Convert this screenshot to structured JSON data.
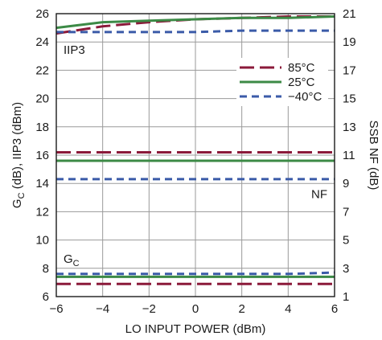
{
  "chart_data": {
    "type": "line",
    "x_axis": {
      "label": "LO INPUT POWER (dBm)",
      "lim": [
        -6,
        6
      ],
      "ticks": [
        -6,
        -4,
        -2,
        0,
        2,
        4,
        6
      ],
      "tick_labels": [
        "−6",
        "−4",
        "−2",
        "0",
        "2",
        "4",
        "6"
      ]
    },
    "y_axis_left": {
      "label": "G",
      "label_subscript": "C",
      "label_rest": " (dB), IIP3 (dBm)",
      "lim": [
        6,
        26
      ],
      "ticks": [
        6,
        8,
        10,
        12,
        14,
        16,
        18,
        20,
        22,
        24,
        26
      ],
      "tick_labels": [
        "6",
        "8",
        "10",
        "12",
        "14",
        "16",
        "18",
        "20",
        "22",
        "24",
        "26"
      ]
    },
    "y_axis_right": {
      "label": "SSB NF (dB)",
      "lim": [
        1,
        21
      ],
      "ticks": [
        1,
        3,
        5,
        7,
        9,
        11,
        13,
        15,
        17,
        19,
        21
      ],
      "tick_labels": [
        "1",
        "3",
        "5",
        "7",
        "9",
        "11",
        "13",
        "15",
        "17",
        "19",
        "21"
      ]
    },
    "grid": true,
    "legend": {
      "placement": "right, middle-upper",
      "entries": [
        {
          "name": "85°C",
          "color": "#8b1a3a",
          "dash": "dashed"
        },
        {
          "name": "25°C",
          "color": "#3c8a46",
          "dash": "solid"
        },
        {
          "name": "−40°C",
          "color": "#3b5ba8",
          "dash": "short-dashed"
        }
      ]
    },
    "annotations": [
      {
        "text": "IIP3",
        "near_group": "IIP3"
      },
      {
        "text": "NF",
        "near_group": "NF"
      },
      {
        "text": "G",
        "subscript": "C",
        "near_group": "GC"
      }
    ],
    "series": [
      {
        "group": "IIP3",
        "temp": "85°C",
        "axis": "left",
        "x": [
          -6,
          -4,
          -2,
          0,
          2,
          4,
          6
        ],
        "y": [
          24.6,
          25.1,
          25.4,
          25.6,
          25.7,
          25.8,
          25.8
        ]
      },
      {
        "group": "IIP3",
        "temp": "25°C",
        "axis": "left",
        "x": [
          -6,
          -4,
          -2,
          0,
          2,
          4,
          6
        ],
        "y": [
          25.0,
          25.4,
          25.5,
          25.6,
          25.7,
          25.7,
          25.8
        ]
      },
      {
        "group": "IIP3",
        "temp": "−40°C",
        "axis": "left",
        "x": [
          -6,
          -4,
          -2,
          0,
          2,
          4,
          6
        ],
        "y": [
          24.7,
          24.7,
          24.7,
          24.7,
          24.8,
          24.8,
          24.8
        ]
      },
      {
        "group": "NF",
        "temp": "85°C",
        "axis": "right",
        "x": [
          -6,
          -4,
          -2,
          0,
          2,
          4,
          6
        ],
        "y": [
          11.2,
          11.2,
          11.2,
          11.2,
          11.2,
          11.2,
          11.2
        ]
      },
      {
        "group": "NF",
        "temp": "25°C",
        "axis": "right",
        "x": [
          -6,
          -4,
          -2,
          0,
          2,
          4,
          6
        ],
        "y": [
          10.6,
          10.6,
          10.6,
          10.6,
          10.6,
          10.6,
          10.6
        ]
      },
      {
        "group": "NF",
        "temp": "−40°C",
        "axis": "right",
        "x": [
          -6,
          -4,
          -2,
          0,
          2,
          4,
          6
        ],
        "y": [
          9.3,
          9.3,
          9.3,
          9.3,
          9.3,
          9.3,
          9.3
        ]
      },
      {
        "group": "GC",
        "temp": "85°C",
        "axis": "left",
        "x": [
          -6,
          -4,
          -2,
          0,
          2,
          4,
          6
        ],
        "y": [
          6.9,
          6.9,
          6.9,
          6.9,
          6.9,
          6.9,
          6.9
        ]
      },
      {
        "group": "GC",
        "temp": "25°C",
        "axis": "left",
        "x": [
          -6,
          -4,
          -2,
          0,
          2,
          4,
          6
        ],
        "y": [
          7.4,
          7.4,
          7.4,
          7.4,
          7.4,
          7.4,
          7.4
        ]
      },
      {
        "group": "GC",
        "temp": "−40°C",
        "axis": "left",
        "x": [
          -6,
          -4,
          -2,
          0,
          2,
          4,
          6
        ],
        "y": [
          7.6,
          7.6,
          7.6,
          7.6,
          7.6,
          7.6,
          7.7
        ]
      }
    ]
  }
}
